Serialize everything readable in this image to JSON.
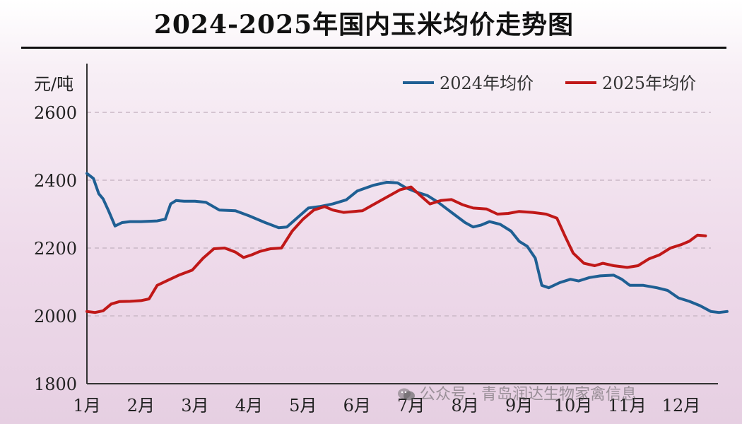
{
  "chart_data": {
    "type": "line",
    "title": "2024-2025年国内玉米均价走势图",
    "ylabel": "元/吨",
    "xlabel": "",
    "ylim": [
      1800,
      2600
    ],
    "yticks": [
      1800,
      2000,
      2200,
      2400,
      2600
    ],
    "categories": [
      "1月",
      "2月",
      "3月",
      "4月",
      "5月",
      "6月",
      "7月",
      "8月",
      "9月",
      "10月",
      "11月",
      "12月"
    ],
    "grid": true,
    "legend_position": "top-right",
    "series": [
      {
        "name": "2024年均价",
        "color": "#1f5f93",
        "points": [
          [
            1.0,
            2420
          ],
          [
            1.12,
            2405
          ],
          [
            1.22,
            2360
          ],
          [
            1.3,
            2345
          ],
          [
            1.4,
            2310
          ],
          [
            1.52,
            2265
          ],
          [
            1.65,
            2275
          ],
          [
            1.8,
            2278
          ],
          [
            2.0,
            2278
          ],
          [
            2.3,
            2280
          ],
          [
            2.45,
            2285
          ],
          [
            2.55,
            2330
          ],
          [
            2.65,
            2340
          ],
          [
            2.8,
            2338
          ],
          [
            3.0,
            2338
          ],
          [
            3.2,
            2335
          ],
          [
            3.45,
            2312
          ],
          [
            3.75,
            2310
          ],
          [
            4.0,
            2295
          ],
          [
            4.3,
            2275
          ],
          [
            4.55,
            2260
          ],
          [
            4.7,
            2262
          ],
          [
            4.9,
            2290
          ],
          [
            5.1,
            2318
          ],
          [
            5.3,
            2322
          ],
          [
            5.55,
            2330
          ],
          [
            5.8,
            2342
          ],
          [
            6.0,
            2368
          ],
          [
            6.3,
            2385
          ],
          [
            6.55,
            2394
          ],
          [
            6.75,
            2392
          ],
          [
            6.9,
            2378
          ],
          [
            7.1,
            2365
          ],
          [
            7.3,
            2355
          ],
          [
            7.5,
            2335
          ],
          [
            7.75,
            2305
          ],
          [
            8.0,
            2275
          ],
          [
            8.15,
            2262
          ],
          [
            8.3,
            2268
          ],
          [
            8.45,
            2278
          ],
          [
            8.65,
            2270
          ],
          [
            8.85,
            2250
          ],
          [
            9.0,
            2220
          ],
          [
            9.15,
            2205
          ],
          [
            9.3,
            2170
          ],
          [
            9.42,
            2090
          ],
          [
            9.55,
            2083
          ],
          [
            9.75,
            2098
          ],
          [
            9.95,
            2108
          ],
          [
            10.1,
            2103
          ],
          [
            10.3,
            2113
          ],
          [
            10.5,
            2118
          ],
          [
            10.75,
            2120
          ],
          [
            10.9,
            2108
          ],
          [
            11.05,
            2090
          ],
          [
            11.3,
            2090
          ],
          [
            11.55,
            2083
          ],
          [
            11.75,
            2075
          ],
          [
            11.95,
            2053
          ],
          [
            12.15,
            2043
          ],
          [
            12.35,
            2030
          ],
          [
            12.55,
            2013
          ],
          [
            12.7,
            2010
          ],
          [
            12.85,
            2013
          ]
        ]
      },
      {
        "name": "2025年均价",
        "color": "#c01818",
        "points": [
          [
            1.0,
            2013
          ],
          [
            1.15,
            2010
          ],
          [
            1.3,
            2015
          ],
          [
            1.45,
            2035
          ],
          [
            1.6,
            2042
          ],
          [
            1.8,
            2043
          ],
          [
            2.0,
            2045
          ],
          [
            2.15,
            2050
          ],
          [
            2.3,
            2090
          ],
          [
            2.5,
            2105
          ],
          [
            2.7,
            2120
          ],
          [
            2.95,
            2135
          ],
          [
            3.15,
            2170
          ],
          [
            3.35,
            2198
          ],
          [
            3.55,
            2200
          ],
          [
            3.75,
            2188
          ],
          [
            3.9,
            2172
          ],
          [
            4.05,
            2180
          ],
          [
            4.2,
            2190
          ],
          [
            4.4,
            2198
          ],
          [
            4.6,
            2200
          ],
          [
            4.8,
            2250
          ],
          [
            5.0,
            2285
          ],
          [
            5.2,
            2312
          ],
          [
            5.4,
            2322
          ],
          [
            5.55,
            2312
          ],
          [
            5.75,
            2305
          ],
          [
            5.95,
            2308
          ],
          [
            6.1,
            2310
          ],
          [
            6.3,
            2328
          ],
          [
            6.55,
            2350
          ],
          [
            6.8,
            2372
          ],
          [
            7.0,
            2380
          ],
          [
            7.15,
            2358
          ],
          [
            7.35,
            2330
          ],
          [
            7.55,
            2340
          ],
          [
            7.75,
            2343
          ],
          [
            7.95,
            2328
          ],
          [
            8.15,
            2318
          ],
          [
            8.4,
            2315
          ],
          [
            8.6,
            2300
          ],
          [
            8.8,
            2302
          ],
          [
            9.0,
            2308
          ],
          [
            9.25,
            2305
          ],
          [
            9.5,
            2300
          ],
          [
            9.7,
            2288
          ],
          [
            9.85,
            2235
          ],
          [
            10.0,
            2185
          ],
          [
            10.2,
            2155
          ],
          [
            10.4,
            2148
          ],
          [
            10.55,
            2155
          ],
          [
            10.75,
            2148
          ],
          [
            11.0,
            2143
          ],
          [
            11.2,
            2148
          ],
          [
            11.4,
            2168
          ],
          [
            11.6,
            2180
          ],
          [
            11.8,
            2200
          ],
          [
            12.0,
            2210
          ],
          [
            12.15,
            2220
          ],
          [
            12.3,
            2238
          ],
          [
            12.45,
            2236
          ]
        ]
      }
    ]
  },
  "watermark": {
    "text": "公众号 · 青岛润达生物家禽信息",
    "icon": "wechat-icon"
  }
}
